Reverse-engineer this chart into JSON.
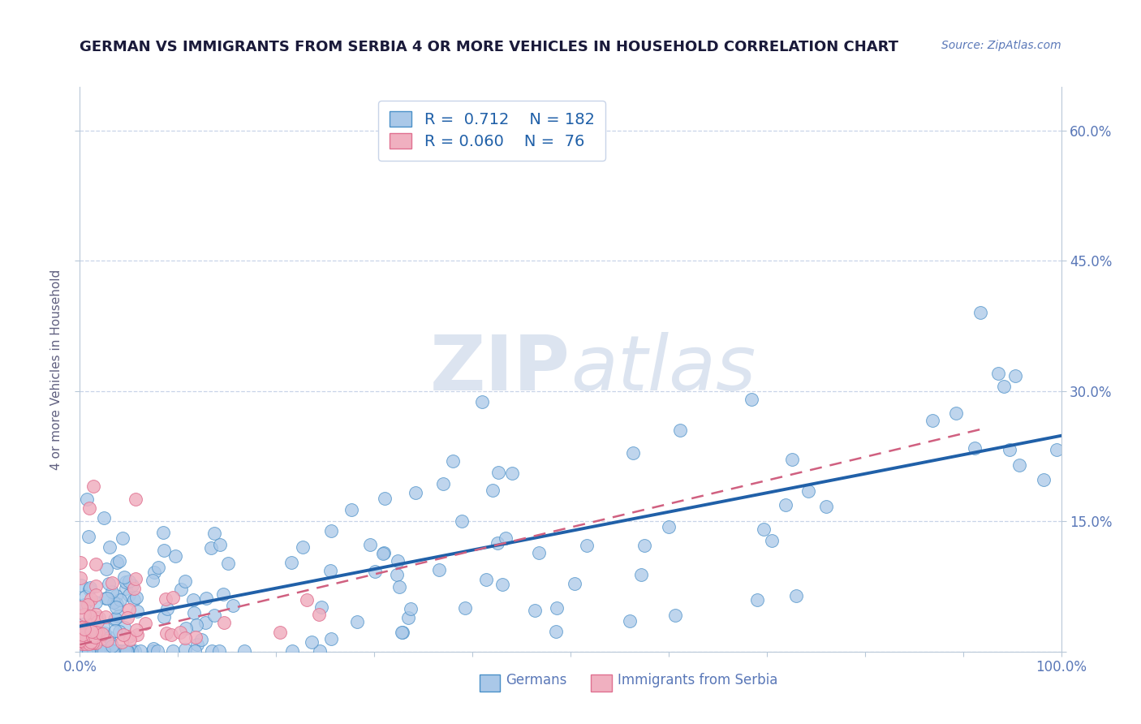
{
  "title": "GERMAN VS IMMIGRANTS FROM SERBIA 4 OR MORE VEHICLES IN HOUSEHOLD CORRELATION CHART",
  "source": "Source: ZipAtlas.com",
  "ylabel": "4 or more Vehicles in Household",
  "xlim": [
    0.0,
    1.0
  ],
  "ylim": [
    0.0,
    0.65
  ],
  "x_ticks": [
    0.0,
    0.1,
    0.2,
    0.3,
    0.4,
    0.5,
    0.6,
    0.7,
    0.8,
    0.9,
    1.0
  ],
  "x_tick_labels": [
    "0.0%",
    "",
    "",
    "",
    "",
    "",
    "",
    "",
    "",
    "",
    "100.0%"
  ],
  "y_ticks": [
    0.0,
    0.15,
    0.3,
    0.45,
    0.6
  ],
  "y_tick_labels": [
    "",
    "15.0%",
    "30.0%",
    "45.0%",
    "60.0%"
  ],
  "color_blue": "#aac8e8",
  "color_blue_edge": "#4a90c8",
  "color_blue_line": "#2060a8",
  "color_pink": "#f0b0c0",
  "color_pink_edge": "#e07090",
  "color_pink_line": "#d06080",
  "color_axis_label": "#606080",
  "color_tick_label": "#5a78b8",
  "background_color": "#ffffff",
  "watermark_color": "#dce4f0",
  "title_fontsize": 13,
  "axis_label_fontsize": 11,
  "tick_label_fontsize": 12,
  "legend_fontsize": 14,
  "R_blue": 0.712,
  "N_blue": 182,
  "R_pink": 0.06,
  "N_pink": 76
}
